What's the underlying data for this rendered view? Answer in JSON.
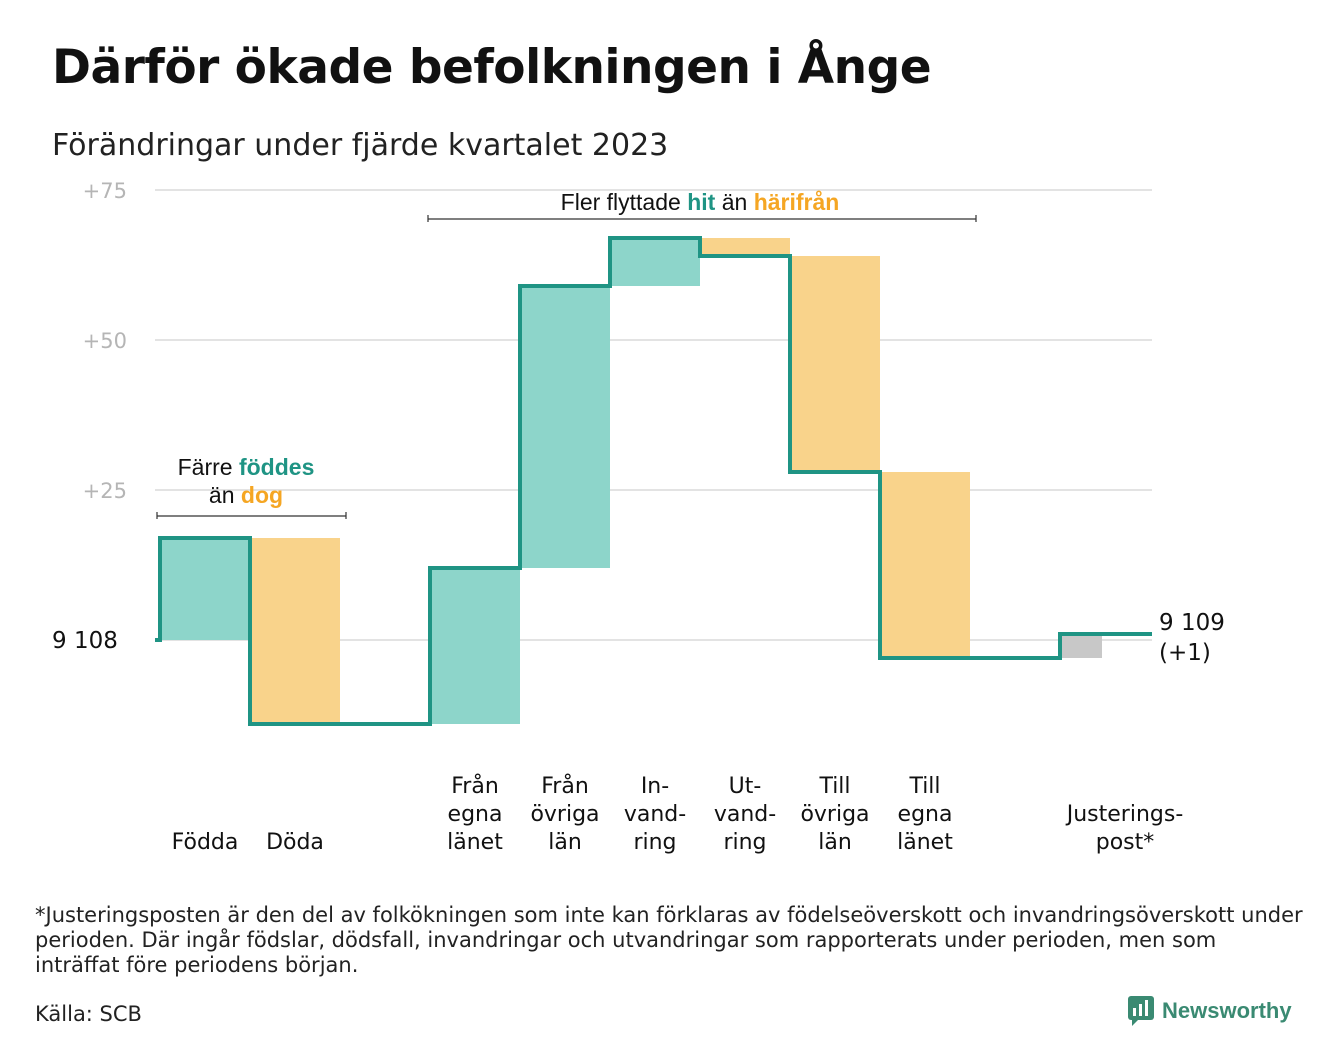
{
  "title": "Därför ökade befolkningen i Ånge",
  "subtitle": "Förändringar under fjärde kvartalet 2023",
  "footnote": "*Justeringsposten är den del av folkökningen som inte kan förklaras av födelseöverskott och invandringsöverskott under perioden. Där ingår födslar, dödsfall, invandringar och utvandringar som rapporterats under perioden, men som inträffat före periodens början.",
  "source": "Källa: SCB",
  "brand": {
    "name": "Newsworthy",
    "icon": "newsworthy-logo-icon"
  },
  "colors": {
    "increase": "#8dd5ca",
    "decrease": "#f9d38b",
    "adjustment": "#c8c8c8",
    "line": "#1f9484",
    "grid": "#e3e3e3",
    "hit": "#1f9484",
    "harifran": "#f5a623"
  },
  "annotations": {
    "births": {
      "pre": "Färre",
      "highlight1": "föddes",
      "mid": "än",
      "highlight2": "dog"
    },
    "moves": {
      "pre": "Fler flyttade",
      "highlight1": "hit",
      "mid": "än",
      "highlight2": "härifrån"
    }
  },
  "chart_data": {
    "type": "waterfall",
    "start": {
      "value": 9108,
      "label": "9  108"
    },
    "end": {
      "value": 9109,
      "label": "9 109",
      "change_label": "(+1)"
    },
    "y_ticks": [
      "+25",
      "+50",
      "+75"
    ],
    "y_tick_values": [
      25,
      50,
      75
    ],
    "ylim": [
      -20,
      77
    ],
    "steps": [
      {
        "label": [
          "Födda"
        ],
        "change": 17,
        "kind": "increase"
      },
      {
        "label": [
          "Döda"
        ],
        "change": -31,
        "kind": "decrease"
      },
      {
        "label": [],
        "change": 0,
        "kind": "gap"
      },
      {
        "label": [
          "Från",
          "egna",
          "länet"
        ],
        "change": 26,
        "kind": "increase"
      },
      {
        "label": [
          "Från",
          "övriga",
          "län"
        ],
        "change": 47,
        "kind": "increase"
      },
      {
        "label": [
          "In-",
          "vand-",
          "ring"
        ],
        "change": 8,
        "kind": "increase"
      },
      {
        "label": [
          "Ut-",
          "vand-",
          "ring"
        ],
        "change": -3,
        "kind": "decrease"
      },
      {
        "label": [
          "Till",
          "övriga",
          "län"
        ],
        "change": -36,
        "kind": "decrease"
      },
      {
        "label": [
          "Till",
          "egna",
          "länet"
        ],
        "change": -31,
        "kind": "decrease"
      },
      {
        "label": [],
        "change": 0,
        "kind": "gap"
      },
      {
        "label": [
          "Justerings-",
          "post*"
        ],
        "change": 4,
        "kind": "adjustment"
      }
    ]
  }
}
